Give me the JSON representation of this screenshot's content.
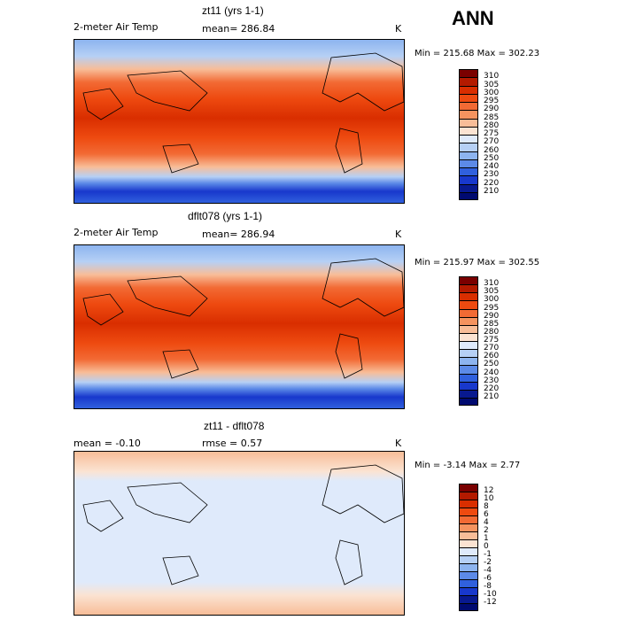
{
  "season_label": "ANN",
  "panels": [
    {
      "title": "zt11 (yrs 1-1)",
      "left_label": "2-meter Air Temp",
      "center_label": "mean= 286.84",
      "units": "K",
      "stats": "Min = 215.68 Max = 302.23",
      "scale": "abs"
    },
    {
      "title": "dflt078 (yrs 1-1)",
      "left_label": "2-meter Air Temp",
      "center_label": "mean= 286.94",
      "units": "K",
      "stats": "Min = 215.97 Max = 302.55",
      "scale": "abs"
    },
    {
      "title": "zt11 - dflt078",
      "left_label": "mean =   -0.10",
      "center_label": "rmse =    0.57",
      "units": "K",
      "stats": "Min =  -3.14 Max =   2.77",
      "scale": "diff"
    }
  ],
  "colorbars": {
    "abs": {
      "levels": [
        "310",
        "305",
        "300",
        "295",
        "290",
        "285",
        "280",
        "275",
        "270",
        "260",
        "250",
        "240",
        "230",
        "220",
        "210"
      ],
      "colors": [
        "#7a0000",
        "#b31a00",
        "#d92e00",
        "#ee4a10",
        "#f26a34",
        "#f5935f",
        "#f8bd98",
        "#fbe3d2",
        "#dfeafb",
        "#b6d0f5",
        "#8db4ef",
        "#5c8ae7",
        "#3060dd",
        "#1838cc",
        "#08198f",
        "#000a70"
      ]
    },
    "diff": {
      "levels": [
        "12",
        "10",
        "8",
        "6",
        "4",
        "2",
        "1",
        "0",
        "-1",
        "-2",
        "-4",
        "-6",
        "-8",
        "-10",
        "-12"
      ],
      "colors": [
        "#7a0000",
        "#b31a00",
        "#d92e00",
        "#ee4a10",
        "#f26a34",
        "#f5935f",
        "#f8bd98",
        "#fbe3d2",
        "#dfeafb",
        "#b6d0f5",
        "#8db4ef",
        "#5c8ae7",
        "#3060dd",
        "#1838cc",
        "#08198f",
        "#000a70"
      ]
    }
  }
}
